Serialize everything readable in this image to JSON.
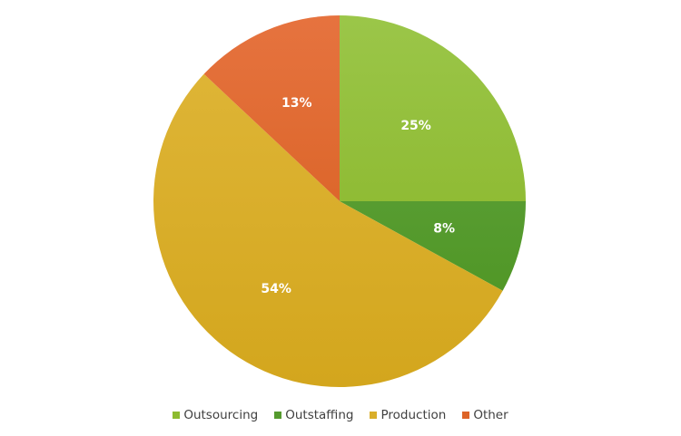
{
  "chart_data": {
    "type": "pie",
    "title": "",
    "categories": [
      "Outsourcing",
      "Outstaffing",
      "Production",
      "Other"
    ],
    "values": [
      25,
      8,
      54,
      13
    ],
    "labels": [
      "25%",
      "8%",
      "54%",
      "13%"
    ],
    "colors": {
      "Outsourcing": [
        "#9bc649",
        "#84b120"
      ],
      "Outstaffing": [
        "#64a645",
        "#4a921c"
      ],
      "Production": [
        "#e0b73a",
        "#d3a61d"
      ],
      "Other": [
        "#e6733f",
        "#d35a18"
      ]
    },
    "legend_position": "bottom",
    "start_angle_deg": 0,
    "direction": "clockwise"
  },
  "legend": {
    "items": [
      {
        "label": "Outsourcing",
        "color": "#8dbb2f"
      },
      {
        "label": "Outstaffing",
        "color": "#559a2e"
      },
      {
        "label": "Production",
        "color": "#d9ae2a"
      },
      {
        "label": "Other",
        "color": "#dd6428"
      }
    ]
  }
}
